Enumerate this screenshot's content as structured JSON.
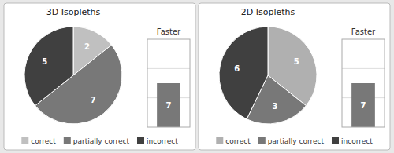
{
  "chart_data": [
    {
      "type": "pie",
      "title": "3D Isopleths",
      "categories": [
        "correct",
        "partially correct",
        "incorrect"
      ],
      "values": [
        2,
        7,
        5
      ],
      "colors": [
        "#c0c0c0",
        "#787878",
        "#404040"
      ],
      "data_labels": true,
      "legend": "bottom"
    },
    {
      "type": "bar",
      "title": "Faster",
      "categories": [
        null
      ],
      "values": [
        7
      ],
      "color": "#787878",
      "ylim": [
        0,
        14
      ],
      "yticks": [
        4.67,
        9.33
      ],
      "grid": true,
      "tick_labels": false,
      "data_labels": true
    },
    {
      "type": "pie",
      "title": "2D Isopleths",
      "categories": [
        "correct",
        "partially correct",
        "incorrect"
      ],
      "values": [
        5,
        3,
        6
      ],
      "colors": [
        "#b0b0b0",
        "#787878",
        "#404040"
      ],
      "data_labels": true,
      "legend": "bottom"
    },
    {
      "type": "bar",
      "title": "Faster",
      "categories": [
        null
      ],
      "values": [
        7
      ],
      "color": "#787878",
      "ylim": [
        0,
        14
      ],
      "yticks": [
        4.67,
        9.33
      ],
      "grid": true,
      "tick_labels": false,
      "data_labels": true
    }
  ]
}
